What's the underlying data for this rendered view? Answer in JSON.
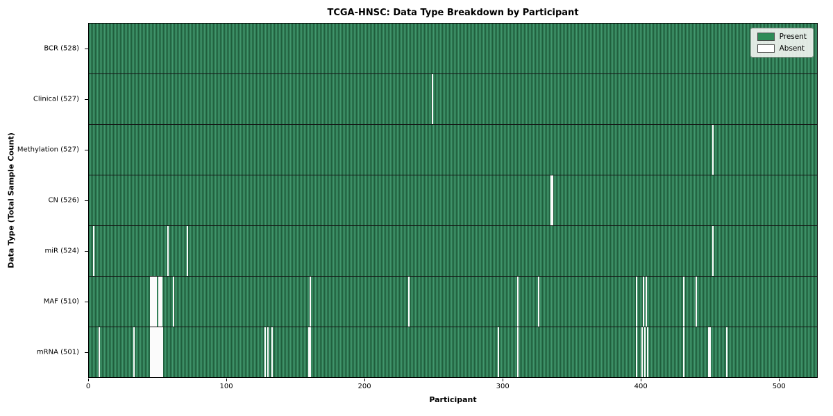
{
  "title": "TCGA-HNSC: Data Type Breakdown by Participant",
  "colors": {
    "present": "#2e8b57",
    "present_stripe_light": "#41976d",
    "present_stripe_dark": "#1f5e3c",
    "absent": "#ffffff",
    "row_separator": "#141414"
  },
  "chart_data": {
    "type": "heatmap",
    "title": "TCGA-HNSC: Data Type Breakdown by Participant",
    "xlabel": "Participant",
    "ylabel": "Data Type (Total Sample Count)",
    "n_participants": 528,
    "x_ticks": [
      0,
      100,
      200,
      300,
      400,
      500
    ],
    "legend": [
      {
        "label": "Present",
        "color": "#2e8b57"
      },
      {
        "label": "Absent",
        "color": "#ffffff"
      }
    ],
    "legend_position": "upper right",
    "grid": false,
    "rows": [
      {
        "name": "BCR",
        "label": "BCR (528)",
        "total": 528,
        "absent_participants": []
      },
      {
        "name": "Clinical",
        "label": "Clinical (527)",
        "total": 527,
        "absent_participants": [
          248
        ]
      },
      {
        "name": "Methylation",
        "label": "Methylation (527)",
        "total": 527,
        "absent_participants": [
          451
        ]
      },
      {
        "name": "CN",
        "label": "CN (526)",
        "total": 526,
        "absent_participants": [
          334,
          335
        ]
      },
      {
        "name": "miR",
        "label": "miR (524)",
        "total": 524,
        "absent_participants": [
          3,
          57,
          71,
          451
        ]
      },
      {
        "name": "MAF",
        "label": "MAF (510)",
        "total": 510,
        "absent_participants": [
          44,
          45,
          46,
          47,
          48,
          50,
          51,
          52,
          61,
          160,
          231,
          310,
          325,
          396,
          401,
          403,
          430,
          439
        ]
      },
      {
        "name": "mRNA",
        "label": "mRNA (501)",
        "total": 501,
        "absent_participants": [
          7,
          32,
          44,
          45,
          46,
          47,
          48,
          49,
          50,
          51,
          52,
          53,
          127,
          129,
          132,
          159,
          160,
          296,
          310,
          396,
          400,
          402,
          404,
          430,
          448,
          449,
          461
        ]
      }
    ]
  }
}
